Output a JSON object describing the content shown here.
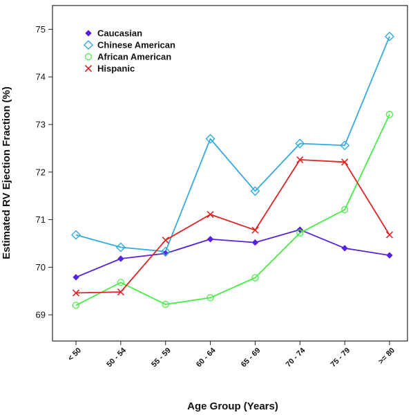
{
  "chart_data": {
    "type": "line",
    "title": "",
    "xlabel": "Age Group (Years)",
    "ylabel": "Estimated RV Ejection Fraction (%)",
    "ylim": [
      68.45,
      75.5
    ],
    "yticks": [
      "69",
      "70",
      "71",
      "72",
      "73",
      "74",
      "75"
    ],
    "grid": false,
    "legend_position": "top-left",
    "categories": [
      "< 50",
      "50 - 54",
      "55 - 59",
      "60 - 64",
      "65 - 69",
      "70 - 74",
      "75 - 79",
      ">= 80"
    ],
    "series": [
      {
        "name": "Caucasian",
        "color": "#5522dd",
        "marker": "filled-diamond",
        "values": [
          69.79,
          70.18,
          70.29,
          70.59,
          70.52,
          70.79,
          70.4,
          70.25
        ]
      },
      {
        "name": "Chinese American",
        "color": "#33aadd",
        "marker": "open-diamond",
        "values": [
          70.68,
          70.42,
          70.33,
          72.7,
          71.6,
          72.6,
          72.56,
          74.85
        ]
      },
      {
        "name": "African American",
        "color": "#44ee44",
        "marker": "open-circle",
        "values": [
          69.2,
          69.68,
          69.22,
          69.36,
          69.78,
          70.72,
          71.21,
          73.21
        ]
      },
      {
        "name": "Hispanic",
        "color": "#dd2222",
        "marker": "x",
        "values": [
          69.46,
          69.48,
          70.57,
          71.11,
          70.78,
          72.26,
          72.21,
          70.68
        ]
      }
    ]
  }
}
